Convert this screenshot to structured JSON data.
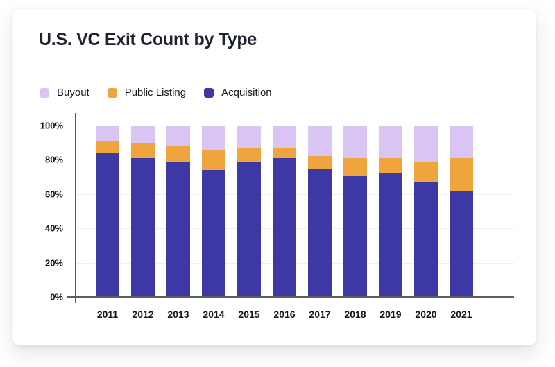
{
  "chart": {
    "title": "U.S. VC Exit Count by Type"
  },
  "legend": [
    {
      "label": "Buyout",
      "color": "#D9C4F4"
    },
    {
      "label": "Public Listing",
      "color": "#F0A43E"
    },
    {
      "label": "Acquisition",
      "color": "#3E37A6"
    }
  ],
  "colors": {
    "acquisition": "#3E37A6",
    "public_listing": "#F0A43E",
    "buyout": "#D9C4F4",
    "axis": "#5c5d64",
    "gridline": "#efeef4",
    "title_text": "#1d2130",
    "label_text": "#15161d"
  },
  "chart_data": {
    "type": "bar",
    "stacked": true,
    "unit": "percent_of_total",
    "title": "U.S. VC Exit Count by Type",
    "categories": [
      "2011",
      "2012",
      "2013",
      "2014",
      "2015",
      "2016",
      "2017",
      "2018",
      "2019",
      "2020",
      "2021"
    ],
    "series": [
      {
        "name": "Acquisition",
        "color": "#3E37A6",
        "values": [
          84,
          81,
          79,
          74,
          79,
          81,
          75,
          71,
          72,
          67,
          62
        ]
      },
      {
        "name": "Public Listing",
        "color": "#F0A43E",
        "values": [
          7,
          9,
          9,
          12,
          8,
          6,
          7,
          10,
          9,
          12,
          19
        ]
      },
      {
        "name": "Buyout",
        "color": "#D9C4F4",
        "values": [
          9,
          10,
          12,
          14,
          13,
          13,
          18,
          19,
          19,
          21,
          19
        ]
      }
    ],
    "xlabel": "",
    "ylabel": "",
    "ylim": [
      0,
      100
    ],
    "yticks": [
      {
        "value": 0,
        "label": "0%"
      },
      {
        "value": 20,
        "label": "20%"
      },
      {
        "value": 40,
        "label": "40%"
      },
      {
        "value": 60,
        "label": "60%"
      },
      {
        "value": 80,
        "label": "80%"
      },
      {
        "value": 100,
        "label": "100%"
      }
    ],
    "grid": true,
    "legend_position": "top-left"
  }
}
